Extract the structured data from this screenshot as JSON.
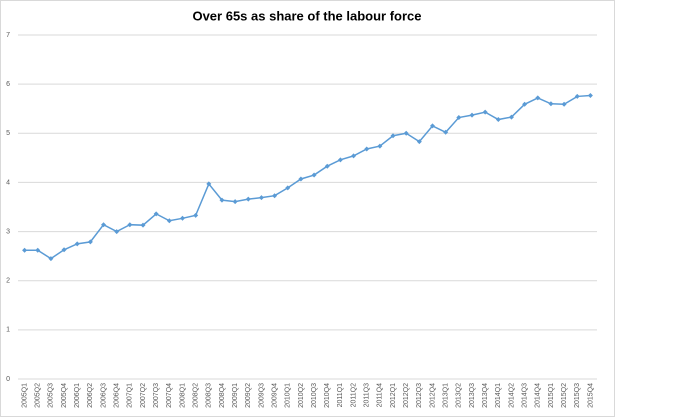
{
  "chart_data": {
    "type": "line",
    "title": "Over 65s as share of the labour force",
    "categories": [
      "2005Q1",
      "2005Q2",
      "2005Q3",
      "2005Q4",
      "2006Q1",
      "2006Q2",
      "2006Q3",
      "2006Q4",
      "2007Q1",
      "2007Q2",
      "2007Q3",
      "2007Q4",
      "2008Q1",
      "2008Q2",
      "2008Q3",
      "2008Q4",
      "2009Q1",
      "2009Q2",
      "2009Q3",
      "2009Q4",
      "2010Q1",
      "2010Q2",
      "2010Q3",
      "2010Q4",
      "2011Q1",
      "2011Q2",
      "2011Q3",
      "2011Q4",
      "2012Q1",
      "2012Q2",
      "2012Q3",
      "2012Q4",
      "2013Q1",
      "2013Q2",
      "2013Q3",
      "2013Q4",
      "2014Q1",
      "2014Q2",
      "2014Q3",
      "2014Q4",
      "2015Q1",
      "2015Q2",
      "2015Q3",
      "2015Q4"
    ],
    "values": [
      2.62,
      2.62,
      2.45,
      2.63,
      2.75,
      2.79,
      3.14,
      3.0,
      3.14,
      3.13,
      3.36,
      3.22,
      3.27,
      3.33,
      3.97,
      3.64,
      3.61,
      3.66,
      3.69,
      3.73,
      3.89,
      4.07,
      4.15,
      4.33,
      4.46,
      4.54,
      4.68,
      4.74,
      4.95,
      5.0,
      4.83,
      5.15,
      5.02,
      5.32,
      5.37,
      5.43,
      5.28,
      5.33,
      5.59,
      5.72,
      5.6,
      5.59,
      5.75,
      5.77
    ],
    "color": "#5b9bd5",
    "ylim": [
      0,
      7
    ],
    "yticks": [
      0,
      1,
      2,
      3,
      4,
      5,
      6,
      7
    ],
    "grid": true
  }
}
